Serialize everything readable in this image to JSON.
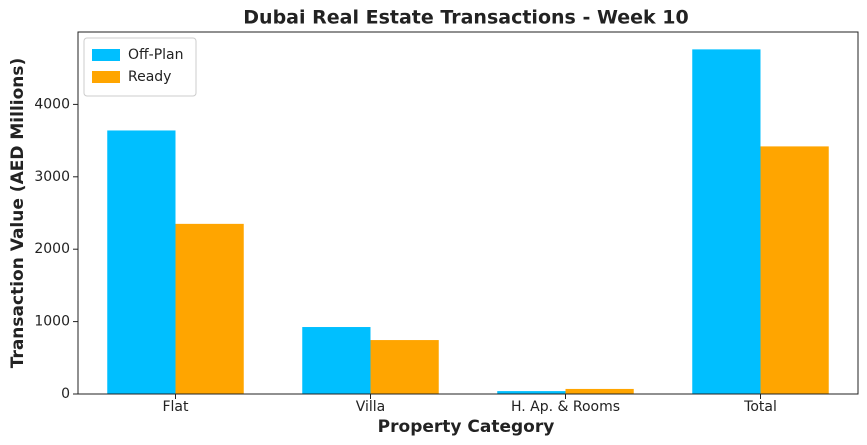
{
  "chart_data": {
    "type": "bar",
    "title": "Dubai Real Estate Transactions - Week 10",
    "x_label": "Property Category",
    "y_label": "Transaction Value (AED Millions)",
    "categories": [
      "Flat",
      "Villa",
      "H. Ap. & Rooms",
      "Total"
    ],
    "series": [
      {
        "name": "Off-Plan",
        "color": "#00bfff",
        "values": [
          3640,
          925,
          40,
          4760
        ]
      },
      {
        "name": "Ready",
        "color": "#ffa500",
        "values": [
          2350,
          745,
          70,
          3420
        ]
      }
    ],
    "ylim": [
      0,
      5000
    ],
    "yticks": [
      0,
      1000,
      2000,
      3000,
      4000
    ],
    "grid": false,
    "legend": "upper-left"
  }
}
